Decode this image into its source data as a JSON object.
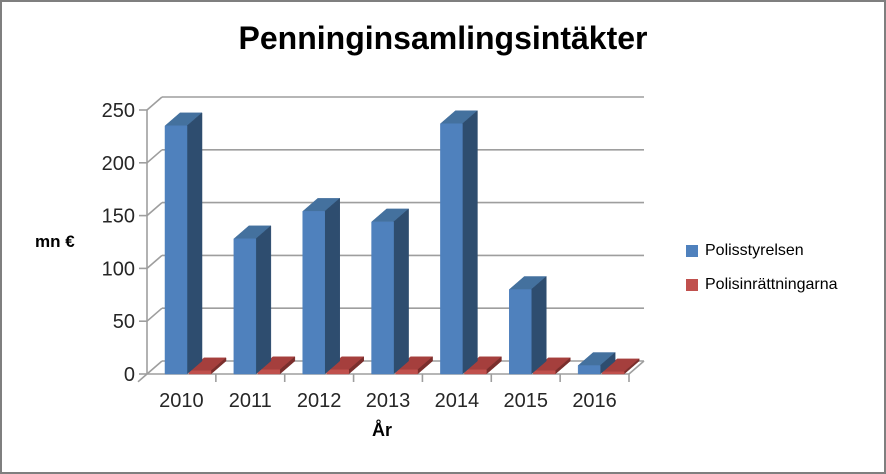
{
  "window": {
    "background": "#ffffff",
    "border_color": "#7f7f7f"
  },
  "title": "Penninginsamlingsintäkter",
  "chart_data": {
    "type": "bar",
    "style": "3d-column",
    "title": "Penninginsamlingsintäkter",
    "xlabel": "År",
    "ylabel": "mn €",
    "categories": [
      "2010",
      "2011",
      "2012",
      "2013",
      "2014",
      "2015",
      "2016"
    ],
    "series": [
      {
        "name": "Polisstyrelsen",
        "color": "#4F81BD",
        "color_top": "#44719E",
        "color_side": "#2E4D6F",
        "values": [
          235,
          128,
          154,
          144,
          237,
          80,
          8
        ]
      },
      {
        "name": "Polisinrättningarna",
        "color": "#C0504D",
        "color_top": "#A53F3D",
        "color_side": "#7A2E2C",
        "values": [
          3,
          4,
          4,
          4,
          4,
          3,
          2
        ]
      }
    ],
    "yticks": [
      0,
      50,
      100,
      150,
      200,
      250
    ],
    "ylim": [
      0,
      250
    ],
    "grid": true,
    "legend_position": "right",
    "gridline_color": "#9E9E9E",
    "axis_color": "#9E9E9E",
    "tick_label_color": "#262626"
  }
}
